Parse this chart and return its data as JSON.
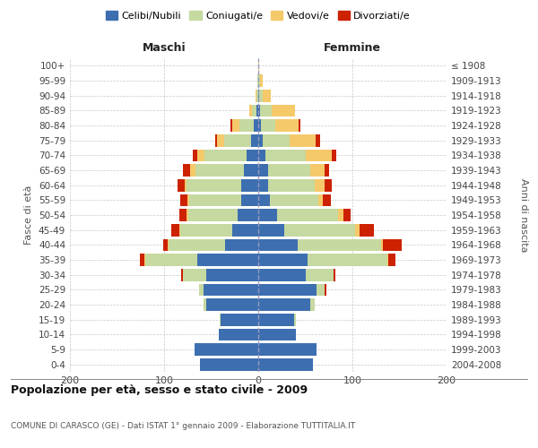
{
  "age_groups": [
    "0-4",
    "5-9",
    "10-14",
    "15-19",
    "20-24",
    "25-29",
    "30-34",
    "35-39",
    "40-44",
    "45-49",
    "50-54",
    "55-59",
    "60-64",
    "65-69",
    "70-74",
    "75-79",
    "80-84",
    "85-89",
    "90-94",
    "95-99",
    "100+"
  ],
  "birth_years": [
    "2004-2008",
    "1999-2003",
    "1994-1998",
    "1989-1993",
    "1984-1988",
    "1979-1983",
    "1974-1978",
    "1969-1973",
    "1964-1968",
    "1959-1963",
    "1954-1958",
    "1949-1953",
    "1944-1948",
    "1939-1943",
    "1934-1938",
    "1929-1933",
    "1924-1928",
    "1919-1923",
    "1914-1918",
    "1909-1913",
    "≤ 1908"
  ],
  "male_celibe": [
    62,
    68,
    42,
    40,
    55,
    58,
    55,
    65,
    35,
    28,
    22,
    18,
    18,
    15,
    12,
    8,
    5,
    2,
    0,
    0,
    0
  ],
  "male_coniugato": [
    0,
    0,
    0,
    1,
    3,
    5,
    25,
    55,
    60,
    55,
    52,
    55,
    58,
    52,
    45,
    28,
    15,
    5,
    2,
    1,
    0
  ],
  "male_vedovo": [
    0,
    0,
    0,
    0,
    0,
    0,
    0,
    1,
    1,
    1,
    2,
    2,
    2,
    5,
    8,
    8,
    8,
    3,
    1,
    0,
    0
  ],
  "male_divorziato": [
    0,
    0,
    0,
    0,
    0,
    0,
    2,
    5,
    5,
    8,
    8,
    8,
    8,
    8,
    5,
    2,
    2,
    0,
    0,
    0,
    0
  ],
  "female_celibe": [
    58,
    62,
    40,
    38,
    55,
    62,
    50,
    52,
    42,
    28,
    20,
    12,
    10,
    10,
    8,
    5,
    3,
    2,
    1,
    0,
    0
  ],
  "female_coniugata": [
    0,
    0,
    0,
    2,
    5,
    8,
    30,
    85,
    88,
    75,
    65,
    52,
    50,
    45,
    42,
    28,
    15,
    12,
    4,
    2,
    0
  ],
  "female_vedova": [
    0,
    0,
    0,
    0,
    0,
    0,
    0,
    1,
    2,
    5,
    5,
    5,
    10,
    15,
    28,
    28,
    25,
    25,
    8,
    3,
    1
  ],
  "female_divorziata": [
    0,
    0,
    0,
    0,
    0,
    2,
    2,
    8,
    20,
    15,
    8,
    8,
    8,
    5,
    5,
    5,
    2,
    0,
    0,
    0,
    0
  ],
  "colors": {
    "celibe": "#3d6fb0",
    "coniugato": "#c5d9a0",
    "vedovo": "#f5c96a",
    "divorziato": "#cc2200"
  },
  "xlim": 200,
  "title": "Popolazione per età, sesso e stato civile - 2009",
  "subtitle": "COMUNE DI CARASCO (GE) - Dati ISTAT 1° gennaio 2009 - Elaborazione TUTTITALIA.IT",
  "ylabel_left": "Fasce di età",
  "ylabel_right": "Anni di nascita",
  "xlabel_left": "Maschi",
  "xlabel_right": "Femmine"
}
